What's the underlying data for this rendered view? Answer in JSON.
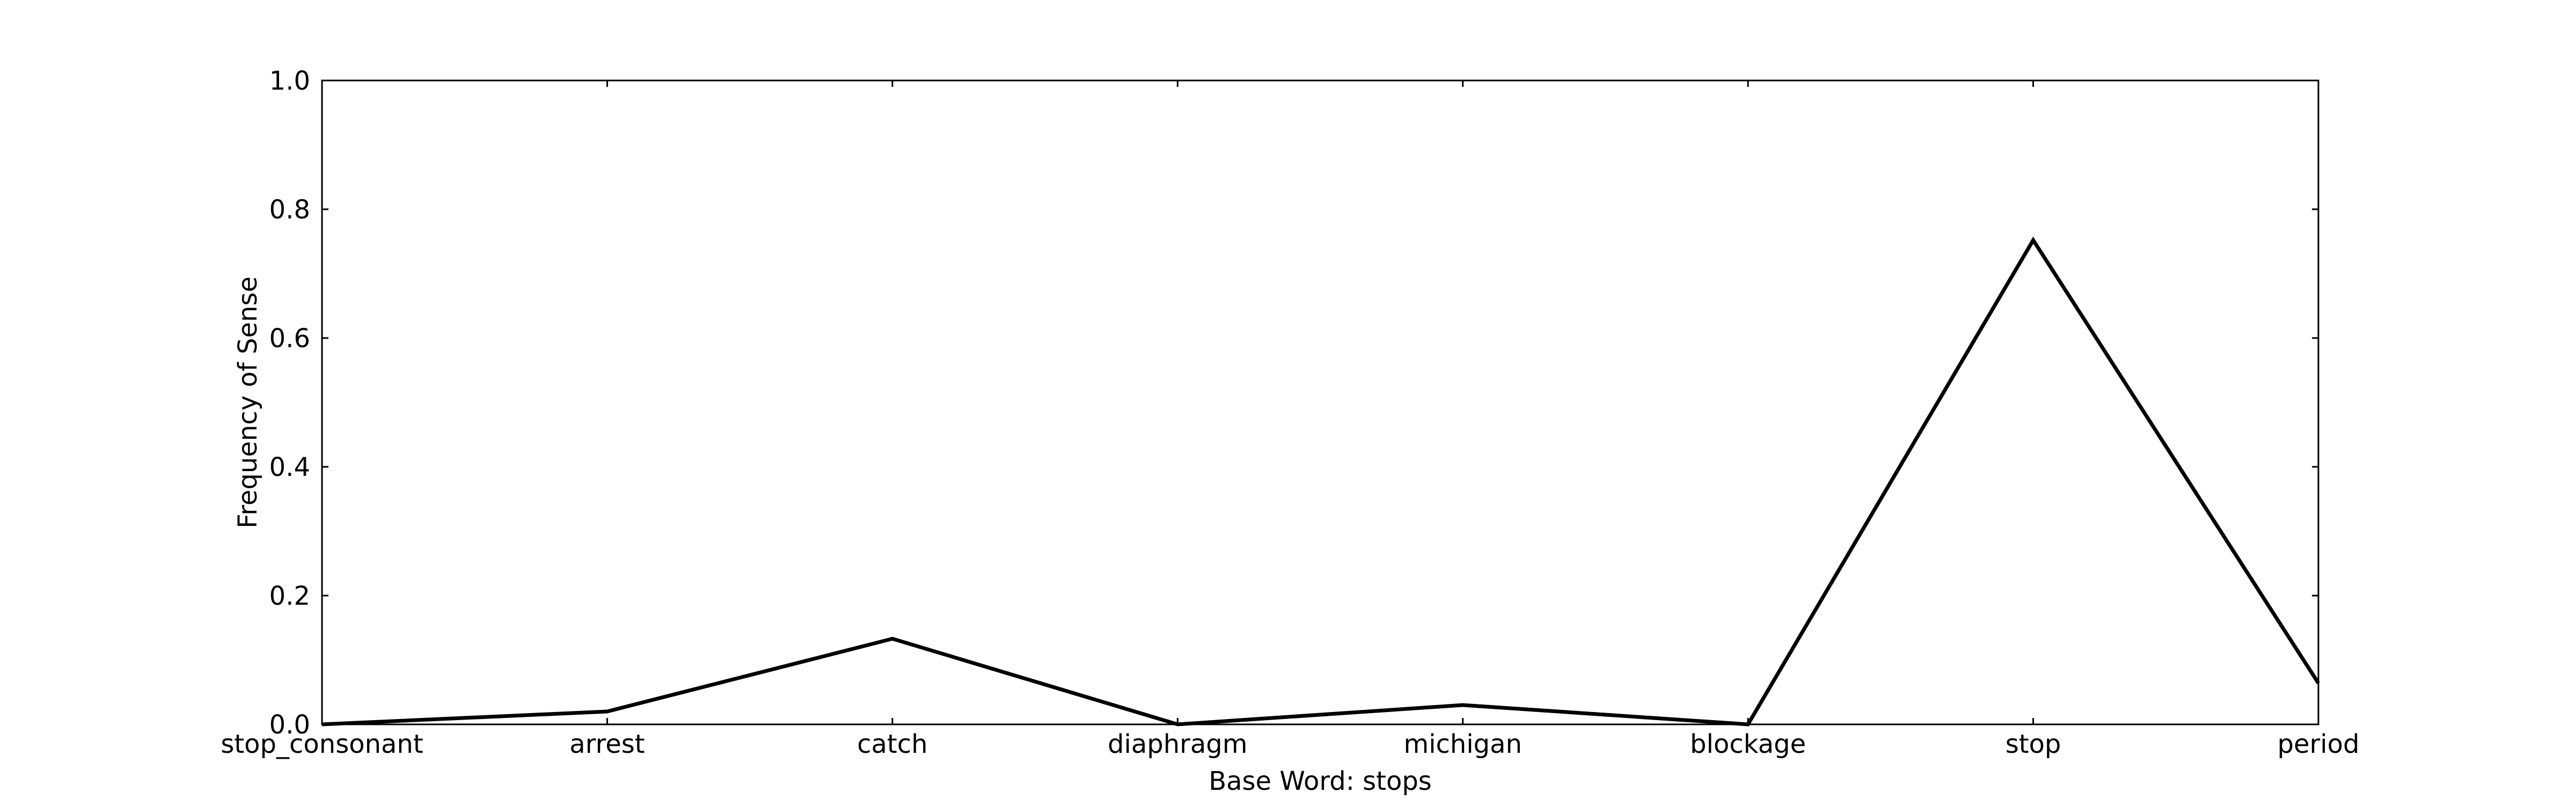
{
  "chart_data": {
    "type": "line",
    "title": "",
    "xlabel": "Base Word: stops",
    "ylabel": "Frequency of Sense",
    "categories": [
      "stop_consonant",
      "arrest",
      "catch",
      "diaphragm",
      "michigan",
      "blockage",
      "stop",
      "period"
    ],
    "series": [
      {
        "values": [
          0.0,
          0.02,
          0.133,
          0.0,
          0.03,
          0.0,
          0.752,
          0.064
        ]
      }
    ],
    "ylim": [
      0.0,
      1.0
    ],
    "yticks": [
      0.0,
      0.2,
      0.4,
      0.6,
      0.8,
      1.0
    ],
    "ytick_labels": [
      "0.0",
      "0.2",
      "0.4",
      "0.6",
      "0.8",
      "1.0"
    ],
    "grid": false,
    "legend": "none",
    "colors": {
      "line": "#000000",
      "axes": "#000000",
      "background": "#ffffff"
    }
  }
}
